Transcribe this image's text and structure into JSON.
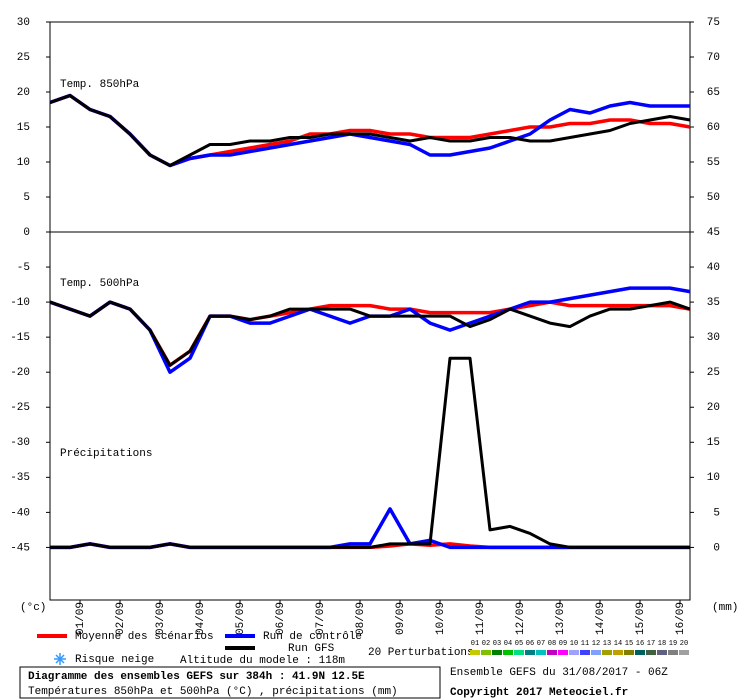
{
  "chart_data": {
    "type": "line",
    "x": [
      0,
      12,
      24,
      36,
      48,
      60,
      72,
      84,
      96,
      108,
      120,
      132,
      144,
      156,
      168,
      180,
      192,
      204,
      216,
      228,
      240,
      252,
      264,
      276,
      288,
      300,
      312,
      324,
      336,
      348,
      360,
      372,
      384
    ],
    "xlim": [
      0,
      384
    ],
    "xticks": [
      {
        "value": 18,
        "label": "01/09"
      },
      {
        "value": 42,
        "label": "02/09"
      },
      {
        "value": 66,
        "label": "03/09"
      },
      {
        "value": 90,
        "label": "04/09"
      },
      {
        "value": 114,
        "label": "05/09"
      },
      {
        "value": 138,
        "label": "06/09"
      },
      {
        "value": 162,
        "label": "07/09"
      },
      {
        "value": 186,
        "label": "08/09"
      },
      {
        "value": 210,
        "label": "09/09"
      },
      {
        "value": 234,
        "label": "10/09"
      },
      {
        "value": 258,
        "label": "11/09"
      },
      {
        "value": 282,
        "label": "12/09"
      },
      {
        "value": 306,
        "label": "13/09"
      },
      {
        "value": 330,
        "label": "14/09"
      },
      {
        "value": 354,
        "label": "15/09"
      },
      {
        "value": 378,
        "label": "16/09"
      }
    ],
    "y_unit": "(°c)",
    "y2_unit": "(mm)",
    "legend": [
      {
        "name": "Moyenne des scénarios",
        "color": "#ff0000"
      },
      {
        "name": "Run de contrôle",
        "color": "#0000ff"
      },
      {
        "name": "Run GFS",
        "color": "#000000"
      }
    ],
    "perturbations": {
      "title": "20 Perturbations",
      "labels": [
        "01",
        "02",
        "03",
        "04",
        "05",
        "06",
        "07",
        "08",
        "09",
        "10",
        "11",
        "12",
        "13",
        "14",
        "15",
        "16",
        "17",
        "18",
        "19",
        "20"
      ],
      "colors": [
        "#c8c800",
        "#80c000",
        "#008000",
        "#00c000",
        "#00e080",
        "#008080",
        "#00c0c0",
        "#c000c0",
        "#ff00ff",
        "#a0a0ff",
        "#4040ff",
        "#80a0ff",
        "#a0a000",
        "#c0a000",
        "#808000",
        "#006060",
        "#406040",
        "#606080",
        "#808080",
        "#a0a0a0"
      ]
    },
    "snow_risk": "Risque neige",
    "altitude": "Altitude du modele : 118m",
    "title": "Diagramme des ensembles GEFS sur 384h : 41.9N 12.5E",
    "subtitle": "Températures 850hPa et 500hPa (°C) , précipitations (mm)",
    "run_info": "Ensemble GEFS du 31/08/2017 - 06Z",
    "copyright": "Copyright 2017 Meteociel.fr",
    "panels": [
      {
        "labels": [
          "Temp. 850hPa"
        ],
        "ylim": [
          0,
          30
        ],
        "yticks": [
          5,
          10,
          15,
          20,
          25,
          30
        ],
        "y2lim": [
          45,
          75
        ],
        "y2ticks": [
          50,
          55,
          60,
          65,
          70,
          75
        ],
        "series": [
          {
            "values": [
              18.5,
              19.5,
              17.5,
              16.5,
              14,
              11,
              9.5,
              10.5,
              11,
              11.5,
              12,
              12.5,
              13,
              14,
              14,
              14.5,
              14.5,
              14,
              14,
              13.5,
              13.5,
              13.5,
              14,
              14.5,
              15,
              15,
              15.5,
              15.5,
              16,
              16,
              15.5,
              15.5,
              15
            ]
          },
          {
            "values": [
              18.5,
              19.5,
              17.5,
              16.5,
              14,
              11,
              9.5,
              10.5,
              11,
              11,
              11.5,
              12,
              12.5,
              13,
              13.5,
              14,
              13.5,
              13,
              12.5,
              11,
              11,
              11.5,
              12,
              13,
              14,
              16,
              17.5,
              17,
              18,
              18.5,
              18,
              18,
              18
            ]
          },
          {
            "values": [
              18.5,
              19.5,
              17.5,
              16.5,
              14,
              11,
              9.5,
              11,
              12.5,
              12.5,
              13,
              13,
              13.5,
              13.5,
              14,
              14,
              14,
              13.5,
              13,
              13.5,
              13,
              13,
              13.5,
              13.5,
              13,
              13,
              13.5,
              14,
              14.5,
              15.5,
              16,
              16.5,
              16
            ]
          }
        ]
      },
      {
        "labels": [
          "Temp. 500hPa",
          "Précipitations"
        ],
        "ylim": [
          -52.5,
          0
        ],
        "yticks": [
          0,
          -5,
          -10,
          -15,
          -20,
          -25,
          -30,
          -35,
          -40,
          -45
        ],
        "y2lim": [
          -7.5,
          45
        ],
        "y2ticks": [
          0,
          5,
          10,
          15,
          20,
          25,
          30,
          35,
          40,
          45
        ],
        "series": [
          {
            "values": [
              -10,
              -11,
              -12,
              -10,
              -11,
              -14,
              -19,
              -17,
              -12,
              -12,
              -12.5,
              -12,
              -11.5,
              -11,
              -10.5,
              -10.5,
              -10.5,
              -11,
              -11,
              -11.5,
              -11.5,
              -11.5,
              -11.5,
              -11,
              -10.5,
              -10,
              -10.5,
              -10.5,
              -10.5,
              -10.5,
              -10.5,
              -10.5,
              -11
            ]
          },
          {
            "values": [
              -10,
              -11,
              -12,
              -10,
              -11,
              -14,
              -20,
              -18,
              -12,
              -12,
              -13,
              -13,
              -12,
              -11,
              -12,
              -13,
              -12,
              -12,
              -11,
              -13,
              -14,
              -13,
              -12,
              -11,
              -10,
              -10,
              -9.5,
              -9,
              -8.5,
              -8,
              -8,
              -8,
              -8.5
            ]
          },
          {
            "values": [
              -10,
              -11,
              -12,
              -10,
              -11,
              -14,
              -19,
              -17,
              -12,
              -12,
              -12.5,
              -12,
              -11,
              -11,
              -11,
              -11,
              -12,
              -12,
              -12,
              -12,
              -12,
              -13.5,
              -12.5,
              -11,
              -12,
              -13,
              -13.5,
              -12,
              -11,
              -11,
              -10.5,
              -10,
              -11
            ]
          },
          {
            "axis": "y2",
            "values": [
              0,
              0,
              0.5,
              0,
              0,
              0,
              0.5,
              0,
              0,
              0,
              0,
              0,
              0,
              0,
              0,
              0,
              0,
              0.2,
              0.5,
              0.3,
              0.5,
              0.2,
              0,
              0,
              0,
              0,
              0,
              0,
              0,
              0,
              0,
              0,
              0
            ]
          },
          {
            "axis": "y2",
            "values": [
              0,
              0,
              0.5,
              0,
              0,
              0,
              0.5,
              0,
              0,
              0,
              0,
              0,
              0,
              0,
              0,
              0.5,
              0.5,
              5.5,
              0.5,
              1,
              0,
              0,
              0,
              0,
              0,
              0,
              0,
              0,
              0,
              0,
              0,
              0,
              0
            ]
          },
          {
            "axis": "y2",
            "values": [
              0,
              0,
              0.5,
              0,
              0,
              0,
              0.5,
              0,
              0,
              0,
              0,
              0,
              0,
              0,
              0,
              0,
              0,
              0.5,
              0.5,
              0.5,
              27,
              27,
              2.5,
              3,
              2,
              0.5,
              0,
              0,
              0,
              0,
              0,
              0,
              0
            ]
          }
        ]
      }
    ]
  }
}
